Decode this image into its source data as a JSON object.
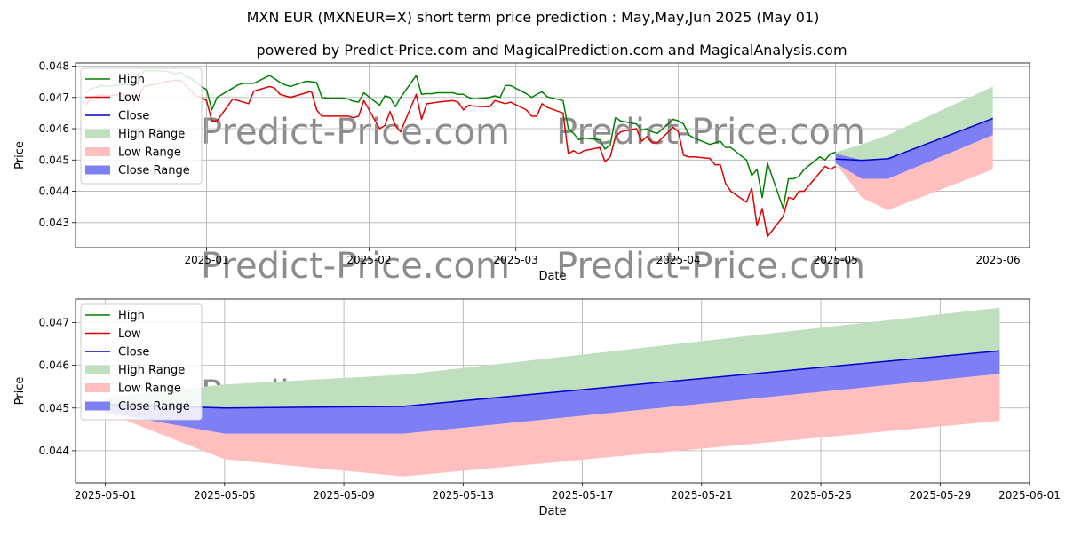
{
  "page": {
    "title": "MXN EUR (MXNEUR=X) short term price prediction : May,May,Jun 2025 (May 01)",
    "subtitle": "powered by Predict-Price.com and MagicalPrediction.com and MagicalAnalysis.com",
    "watermark": "Predict-Price.com"
  },
  "colors": {
    "high": "#008000",
    "low": "#e00000",
    "close": "#0000cc",
    "high_range": "#bfdfbf",
    "low_range": "#ffbfbf",
    "close_range": "#7f7ff5",
    "grid": "#b0b0b0"
  },
  "chart_data": [
    {
      "type": "line",
      "xlabel": "Date",
      "ylabel": "Price",
      "xlim": [
        "2024-12-07",
        "2025-06-07"
      ],
      "ylim": [
        0.0422,
        0.0481
      ],
      "grid": true,
      "legend_position": "top-left",
      "x_ticks": [
        "2025-01",
        "2025-02",
        "2025-03",
        "2025-04",
        "2025-05",
        "2025-06"
      ],
      "x_tick_dates": [
        "2025-01-01",
        "2025-02-01",
        "2025-03-01",
        "2025-04-01",
        "2025-05-01",
        "2025-06-01"
      ],
      "y_ticks": [
        0.043,
        0.044,
        0.045,
        0.046,
        0.047,
        0.048
      ],
      "legend": [
        "High",
        "Low",
        "Close",
        "High Range",
        "Low Range",
        "Close Range"
      ],
      "series": [
        {
          "name": "High",
          "x": [
            "2024-12-09",
            "2024-12-10",
            "2024-12-11",
            "2024-12-12",
            "2024-12-13",
            "2024-12-16",
            "2024-12-17",
            "2024-12-18",
            "2024-12-19",
            "2024-12-20",
            "2024-12-23",
            "2024-12-24",
            "2024-12-26",
            "2024-12-27",
            "2024-12-30",
            "2024-12-31",
            "2025-01-01",
            "2025-01-02",
            "2025-01-03",
            "2025-01-06",
            "2025-01-07",
            "2025-01-08",
            "2025-01-09",
            "2025-01-10",
            "2025-01-13",
            "2025-01-14",
            "2025-01-15",
            "2025-01-16",
            "2025-01-17",
            "2025-01-20",
            "2025-01-21",
            "2025-01-22",
            "2025-01-23",
            "2025-01-24",
            "2025-01-27",
            "2025-01-28",
            "2025-01-29",
            "2025-01-30",
            "2025-01-31",
            "2025-02-03",
            "2025-02-04",
            "2025-02-05",
            "2025-02-06",
            "2025-02-07",
            "2025-02-10",
            "2025-02-11",
            "2025-02-12",
            "2025-02-13",
            "2025-02-14",
            "2025-02-17",
            "2025-02-18",
            "2025-02-19",
            "2025-02-20",
            "2025-02-21",
            "2025-02-24",
            "2025-02-25",
            "2025-02-26",
            "2025-02-27",
            "2025-02-28",
            "2025-03-03",
            "2025-03-04",
            "2025-03-05",
            "2025-03-06",
            "2025-03-07",
            "2025-03-10",
            "2025-03-11",
            "2025-03-12",
            "2025-03-13",
            "2025-03-14",
            "2025-03-17",
            "2025-03-18",
            "2025-03-19",
            "2025-03-20",
            "2025-03-21",
            "2025-03-24",
            "2025-03-25",
            "2025-03-26",
            "2025-03-27",
            "2025-03-28",
            "2025-03-31",
            "2025-04-01",
            "2025-04-02",
            "2025-04-03",
            "2025-04-04",
            "2025-04-07",
            "2025-04-08",
            "2025-04-09",
            "2025-04-10",
            "2025-04-11",
            "2025-04-14",
            "2025-04-15",
            "2025-04-16",
            "2025-04-17",
            "2025-04-18",
            "2025-04-21",
            "2025-04-22",
            "2025-04-23",
            "2025-04-24",
            "2025-04-25",
            "2025-04-28",
            "2025-04-29",
            "2025-04-30",
            "2025-05-01"
          ],
          "values": [
            0.04715,
            0.04728,
            0.04733,
            0.04738,
            0.04735,
            0.04742,
            0.0474,
            0.04745,
            0.04742,
            0.04785,
            0.04785,
            0.04785,
            0.04775,
            0.0478,
            0.0475,
            0.04735,
            0.04725,
            0.0466,
            0.047,
            0.0473,
            0.0474,
            0.04745,
            0.04745,
            0.04745,
            0.0477,
            0.0476,
            0.04748,
            0.0474,
            0.04735,
            0.04752,
            0.0475,
            0.04748,
            0.047,
            0.04698,
            0.04698,
            0.04695,
            0.04688,
            0.04685,
            0.04715,
            0.04675,
            0.04705,
            0.047,
            0.0467,
            0.047,
            0.0477,
            0.0471,
            0.04712,
            0.04712,
            0.04715,
            0.04715,
            0.0471,
            0.0471,
            0.047,
            0.04695,
            0.047,
            0.04705,
            0.047,
            0.04738,
            0.04738,
            0.04712,
            0.047,
            0.0471,
            0.04718,
            0.04702,
            0.0469,
            0.046,
            0.04585,
            0.04565,
            0.0457,
            0.04565,
            0.04535,
            0.04548,
            0.04635,
            0.04625,
            0.04615,
            0.04595,
            0.046,
            0.0459,
            0.04585,
            0.0463,
            0.04625,
            0.04615,
            0.0458,
            0.0457,
            0.0455,
            0.04555,
            0.0456,
            0.0454,
            0.0454,
            0.045,
            0.0445,
            0.0447,
            0.0438,
            0.0449,
            0.04345,
            0.0444,
            0.0444,
            0.04448,
            0.0447,
            0.0451,
            0.045,
            0.0452,
            0.04525
          ]
        },
        {
          "name": "Low",
          "x": [
            "2024-12-09",
            "2024-12-10",
            "2024-12-11",
            "2024-12-12",
            "2024-12-13",
            "2024-12-16",
            "2024-12-17",
            "2024-12-18",
            "2024-12-19",
            "2024-12-20",
            "2024-12-23",
            "2024-12-24",
            "2024-12-26",
            "2024-12-27",
            "2024-12-30",
            "2024-12-31",
            "2025-01-01",
            "2025-01-02",
            "2025-01-03",
            "2025-01-06",
            "2025-01-07",
            "2025-01-08",
            "2025-01-09",
            "2025-01-10",
            "2025-01-13",
            "2025-01-14",
            "2025-01-15",
            "2025-01-16",
            "2025-01-17",
            "2025-01-20",
            "2025-01-21",
            "2025-01-22",
            "2025-01-23",
            "2025-01-24",
            "2025-01-27",
            "2025-01-28",
            "2025-01-29",
            "2025-01-30",
            "2025-01-31",
            "2025-02-03",
            "2025-02-04",
            "2025-02-05",
            "2025-02-06",
            "2025-02-07",
            "2025-02-10",
            "2025-02-11",
            "2025-02-12",
            "2025-02-13",
            "2025-02-14",
            "2025-02-17",
            "2025-02-18",
            "2025-02-19",
            "2025-02-20",
            "2025-02-21",
            "2025-02-24",
            "2025-02-25",
            "2025-02-26",
            "2025-02-27",
            "2025-02-28",
            "2025-03-03",
            "2025-03-04",
            "2025-03-05",
            "2025-03-06",
            "2025-03-07",
            "2025-03-10",
            "2025-03-11",
            "2025-03-12",
            "2025-03-13",
            "2025-03-14",
            "2025-03-17",
            "2025-03-18",
            "2025-03-19",
            "2025-03-20",
            "2025-03-21",
            "2025-03-24",
            "2025-03-25",
            "2025-03-26",
            "2025-03-27",
            "2025-03-28",
            "2025-03-31",
            "2025-04-01",
            "2025-04-02",
            "2025-04-03",
            "2025-04-04",
            "2025-04-07",
            "2025-04-08",
            "2025-04-09",
            "2025-04-10",
            "2025-04-11",
            "2025-04-14",
            "2025-04-15",
            "2025-04-16",
            "2025-04-17",
            "2025-04-18",
            "2025-04-21",
            "2025-04-22",
            "2025-04-23",
            "2025-04-24",
            "2025-04-25",
            "2025-04-28",
            "2025-04-29",
            "2025-04-30",
            "2025-05-01"
          ],
          "values": [
            0.04675,
            0.047,
            0.04705,
            0.04708,
            0.04705,
            0.0471,
            0.04695,
            0.04705,
            0.047,
            0.04735,
            0.04745,
            0.0475,
            0.04755,
            0.04755,
            0.04705,
            0.047,
            0.0469,
            0.04625,
            0.04625,
            0.04695,
            0.0469,
            0.04685,
            0.0468,
            0.0472,
            0.04735,
            0.0473,
            0.0471,
            0.04705,
            0.047,
            0.04715,
            0.0472,
            0.0466,
            0.0464,
            0.0464,
            0.0464,
            0.0464,
            0.04635,
            0.0464,
            0.0469,
            0.046,
            0.0461,
            0.04655,
            0.0461,
            0.0459,
            0.0471,
            0.0463,
            0.0468,
            0.04682,
            0.04685,
            0.0469,
            0.04685,
            0.0466,
            0.04675,
            0.04672,
            0.0467,
            0.0469,
            0.04685,
            0.0468,
            0.04685,
            0.0466,
            0.0464,
            0.0464,
            0.0468,
            0.04668,
            0.0465,
            0.0452,
            0.0453,
            0.0452,
            0.0453,
            0.0454,
            0.04495,
            0.0451,
            0.04575,
            0.0459,
            0.046,
            0.0456,
            0.04575,
            0.04555,
            0.04555,
            0.04605,
            0.0459,
            0.04515,
            0.0451,
            0.0451,
            0.04505,
            0.04485,
            0.04485,
            0.04425,
            0.044,
            0.04365,
            0.0441,
            0.0429,
            0.04345,
            0.04255,
            0.0432,
            0.0438,
            0.04375,
            0.044,
            0.044,
            0.0446,
            0.0448,
            0.0447,
            0.0448
          ]
        },
        {
          "name": "Close",
          "x": [
            "2025-05-01",
            "2025-05-06",
            "2025-05-11",
            "2025-05-31"
          ],
          "values": [
            0.04503,
            0.04499,
            0.04504,
            0.04633
          ]
        }
      ],
      "ranges": [
        {
          "name": "High Range",
          "x": [
            "2025-05-01",
            "2025-05-06",
            "2025-05-11",
            "2025-05-31"
          ],
          "upper": [
            0.04525,
            0.0455,
            0.0458,
            0.04735
          ],
          "lower": [
            0.045,
            0.04465,
            0.04458,
            0.0458
          ]
        },
        {
          "name": "Low Range",
          "x": [
            "2025-05-01",
            "2025-05-06",
            "2025-05-11",
            "2025-05-31"
          ],
          "upper": [
            0.045,
            0.0444,
            0.0444,
            0.0458
          ],
          "lower": [
            0.0449,
            0.0438,
            0.0434,
            0.0447
          ]
        },
        {
          "name": "Close Range",
          "x": [
            "2025-05-01",
            "2025-05-06",
            "2025-05-11",
            "2025-05-31"
          ],
          "upper": [
            0.0452,
            0.045,
            0.04505,
            0.04633
          ],
          "lower": [
            0.0449,
            0.0444,
            0.0444,
            0.0458
          ]
        }
      ]
    },
    {
      "type": "line",
      "xlabel": "Date",
      "ylabel": "Price",
      "xlim": [
        "2025-04-30",
        "2025-06-01"
      ],
      "ylim": [
        0.04325,
        0.04755
      ],
      "grid": true,
      "legend_position": "top-left",
      "x_ticks": [
        "2025-05-01",
        "2025-05-05",
        "2025-05-09",
        "2025-05-13",
        "2025-05-17",
        "2025-05-21",
        "2025-05-25",
        "2025-05-29",
        "2025-06-01"
      ],
      "x_tick_dates": [
        "2025-05-01",
        "2025-05-05",
        "2025-05-09",
        "2025-05-13",
        "2025-05-17",
        "2025-05-21",
        "2025-05-25",
        "2025-05-29",
        "2025-06-01"
      ],
      "y_ticks": [
        0.044,
        0.045,
        0.046,
        0.047
      ],
      "legend": [
        "High",
        "Low",
        "Close",
        "High Range",
        "Low Range",
        "Close Range"
      ],
      "series": [
        {
          "name": "Close",
          "x": [
            "2025-05-01",
            "2025-05-05",
            "2025-05-11",
            "2025-05-31"
          ],
          "values": [
            0.04509,
            0.045,
            0.04504,
            0.04634
          ]
        }
      ],
      "ranges": [
        {
          "name": "High Range",
          "x": [
            "2025-05-01",
            "2025-05-05",
            "2025-05-11",
            "2025-05-31"
          ],
          "upper": [
            0.04525,
            0.04555,
            0.04578,
            0.04735
          ],
          "lower": [
            0.04509,
            0.045,
            0.04504,
            0.04634
          ]
        },
        {
          "name": "Low Range",
          "x": [
            "2025-05-01",
            "2025-05-05",
            "2025-05-11",
            "2025-05-31"
          ],
          "upper": [
            0.045,
            0.0444,
            0.0444,
            0.0458
          ],
          "lower": [
            0.0449,
            0.0438,
            0.0434,
            0.0447
          ]
        },
        {
          "name": "Close Range",
          "x": [
            "2025-05-01",
            "2025-05-05",
            "2025-05-11",
            "2025-05-31"
          ],
          "upper": [
            0.04509,
            0.045,
            0.04504,
            0.04634
          ],
          "lower": [
            0.0449,
            0.0444,
            0.0444,
            0.0458
          ]
        }
      ]
    }
  ]
}
